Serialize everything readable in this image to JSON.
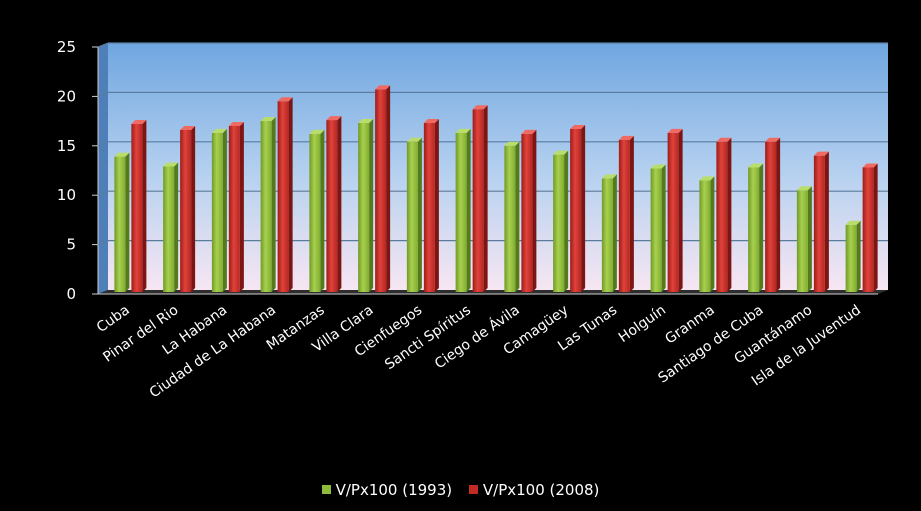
{
  "colors": {
    "background": "#000000",
    "plot_top": "#6fa6e0",
    "plot_bottom": "#f7e6f2",
    "floor": "#2e2e2e",
    "series_1993": "#8dbb3a",
    "series_2008": "#c42a25"
  },
  "chart_data": {
    "type": "bar",
    "title": "",
    "xlabel": "",
    "ylabel": "",
    "ylim": [
      0,
      25
    ],
    "yticks": [
      "0",
      "5",
      "10",
      "15",
      "20",
      "25"
    ],
    "grid": true,
    "legend_position": "bottom",
    "categories": [
      "Cuba",
      "Pinar del Rio",
      "La Habana",
      "Ciudad de La Habana",
      "Matanzas",
      "Villa Clara",
      "Cienfuegos",
      "Sancti Spíritus",
      "Ciego de Ávila",
      "Camagüey",
      "Las Tunas",
      "Holguín",
      "Granma",
      "Santiago de Cuba",
      "Guantánamo",
      "Isla de la Juventud"
    ],
    "series": [
      {
        "name": "V/Px100 (1993)",
        "values": [
          13.5,
          12.5,
          15.9,
          17.1,
          15.8,
          16.9,
          15.0,
          15.9,
          14.6,
          13.7,
          11.3,
          12.3,
          11.1,
          12.4,
          10.1,
          6.6
        ]
      },
      {
        "name": "V/Px100 (2008)",
        "values": [
          16.8,
          16.2,
          16.6,
          19.1,
          17.2,
          20.3,
          16.9,
          18.3,
          15.8,
          16.3,
          15.2,
          15.9,
          15.0,
          15.0,
          13.6,
          12.4
        ]
      }
    ]
  }
}
